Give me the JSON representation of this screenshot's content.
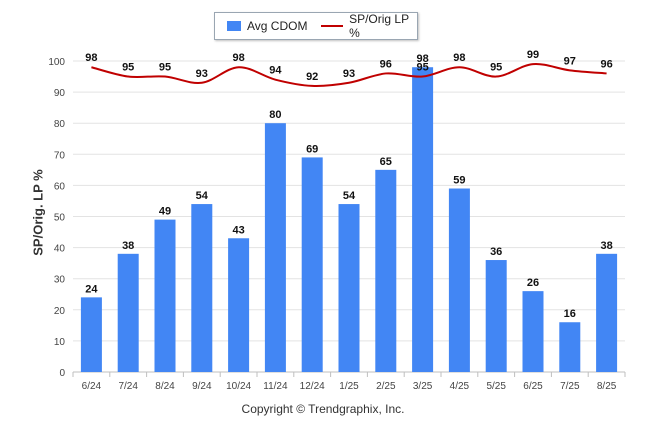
{
  "chart_data": {
    "type": "bar",
    "categories": [
      "6/24",
      "7/24",
      "8/24",
      "9/24",
      "10/24",
      "11/24",
      "12/24",
      "1/25",
      "2/25",
      "3/25",
      "4/25",
      "5/25",
      "6/25",
      "7/25",
      "8/25"
    ],
    "series": [
      {
        "name": "Avg CDOM",
        "type": "bar",
        "color": "#4286f4",
        "values": [
          24,
          38,
          49,
          54,
          43,
          80,
          69,
          54,
          65,
          98,
          59,
          36,
          26,
          16,
          38
        ]
      },
      {
        "name": "SP/Orig LP %",
        "type": "line",
        "color": "#c00000",
        "values": [
          98,
          95,
          95,
          93,
          98,
          94,
          92,
          93,
          96,
          95,
          98,
          95,
          99,
          97,
          96
        ]
      }
    ],
    "ylabel": "SP/Orig. LP %",
    "ylim": [
      0,
      100
    ],
    "yticks": [
      0,
      10,
      20,
      30,
      40,
      50,
      60,
      70,
      80,
      90,
      100
    ],
    "grid": true,
    "legend_position": "top-center",
    "data_labels": true
  },
  "footer": {
    "credit": "Copyright © Trendgraphix, Inc."
  }
}
